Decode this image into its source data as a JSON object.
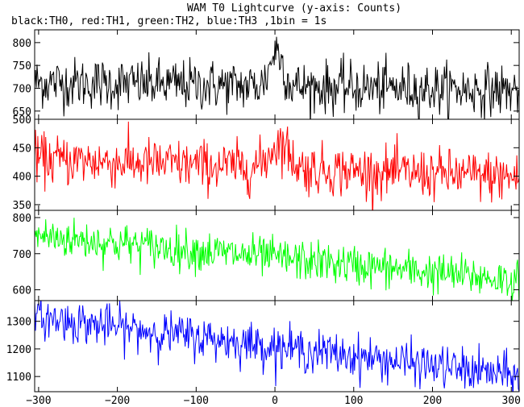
{
  "chart_data": {
    "type": "line",
    "title": "WAM T0 Lightcurve (y-axis: Counts)",
    "subtitle": "black:TH0, red:TH1, green:TH2, blue:TH3 ,1bin = 1s",
    "xlim": [
      -305,
      310
    ],
    "x_ticks": [
      -300,
      -200,
      -100,
      0,
      100,
      200,
      300
    ],
    "x_tick_labels": [
      "−300",
      "−200",
      "−100",
      "0",
      "100",
      "200",
      "300"
    ],
    "bin_seconds": 1,
    "grid": false,
    "series": [
      {
        "name": "TH0",
        "color": "#000000",
        "ylim": [
          632,
          828
        ],
        "y_ticks": [
          650,
          700,
          750,
          800
        ],
        "model": {
          "start": 713,
          "end": 695,
          "noise": 28,
          "bursts": [
            {
              "center": 2,
              "width": 8,
              "amplitude": 80
            }
          ]
        }
      },
      {
        "name": "TH1",
        "color": "#ff0000",
        "ylim": [
          340,
          500
        ],
        "y_ticks": [
          350,
          400,
          450,
          500
        ],
        "model": {
          "start": 430,
          "end": 398,
          "noise": 22,
          "bursts": [
            {
              "center": 6,
              "width": 12,
              "amplitude": 45
            }
          ]
        }
      },
      {
        "name": "TH2",
        "color": "#00ff00",
        "ylim": [
          570,
          820
        ],
        "y_ticks": [
          600,
          700,
          800
        ],
        "model": {
          "start": 750,
          "end": 625,
          "noise": 28,
          "bursts": []
        }
      },
      {
        "name": "TH3",
        "color": "#0000ff",
        "ylim": [
          1045,
          1375
        ],
        "y_ticks": [
          1100,
          1200,
          1300
        ],
        "model": {
          "start": 1315,
          "end": 1100,
          "noise": 38,
          "bursts": []
        }
      }
    ]
  }
}
